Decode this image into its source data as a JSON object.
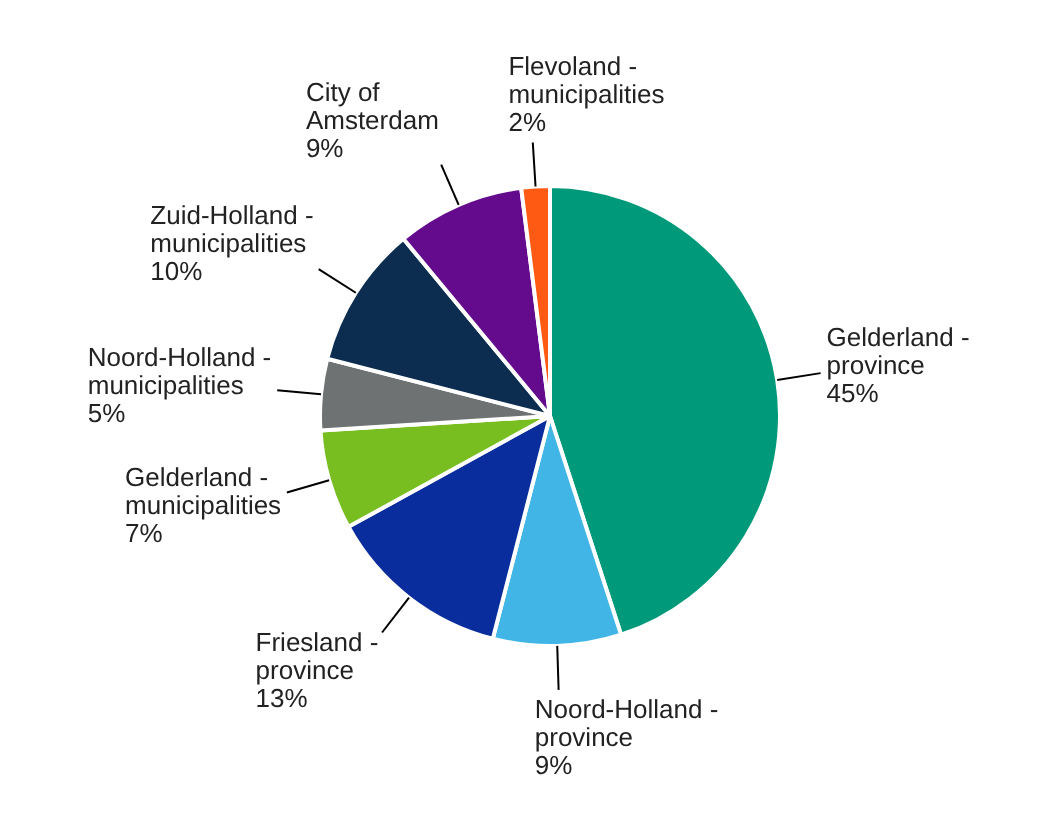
{
  "chart_data": {
    "type": "pie",
    "categories": [
      "Gelderland - province",
      "Noord-Holland - province",
      "Friesland - province",
      "Gelderland - municipalities",
      "Noord-Holland - municipalities",
      "Zuid-Holland - municipalities",
      "City of Amsterdam",
      "Flevoland - municipalities"
    ],
    "values": [
      45,
      9,
      13,
      7,
      5,
      10,
      9,
      2
    ],
    "value_labels": [
      "45%",
      "9%",
      "13%",
      "7%",
      "5%",
      "10%",
      "9%",
      "2%"
    ],
    "colors": [
      "#00997a",
      "#41b6e6",
      "#0a2d9e",
      "#78be20",
      "#6e7273",
      "#0c2d4f",
      "#640a8c",
      "#ff5a14"
    ],
    "legend": false
  }
}
